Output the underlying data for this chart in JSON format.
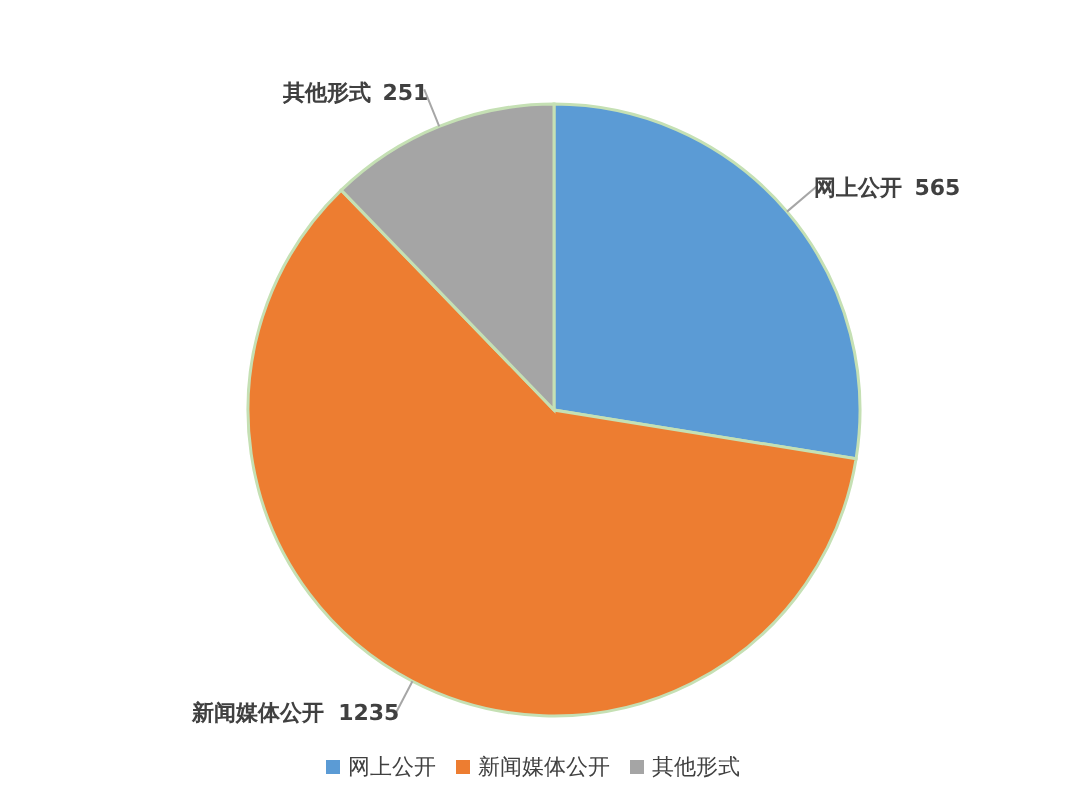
{
  "chart_data": {
    "type": "pie",
    "categories": [
      "网上公开",
      "新闻媒体公开",
      "其他形式"
    ],
    "values": [
      565,
      1235,
      251
    ],
    "colors": [
      "#5b9bd5",
      "#ed7d31",
      "#a5a5a5"
    ],
    "data_labels": true,
    "legend": "bottom"
  }
}
